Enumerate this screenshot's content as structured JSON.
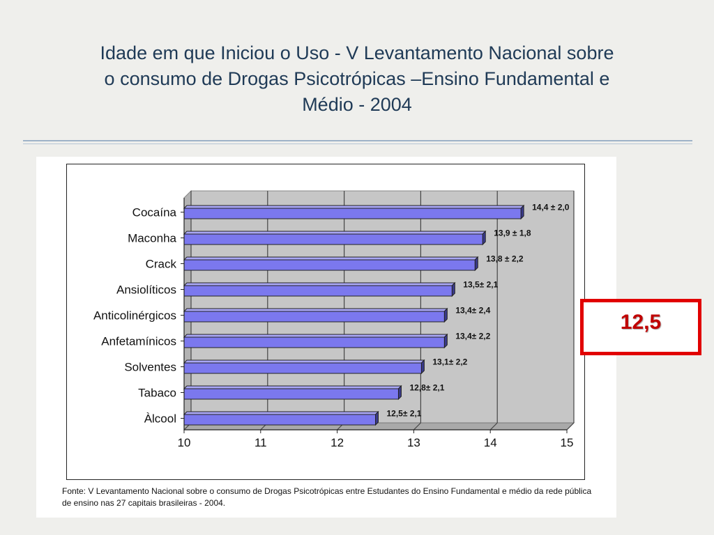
{
  "slide": {
    "title_lines": [
      "Idade em que Iniciou o Uso - V Levantamento Nacional sobre",
      "o consumo de Drogas Psicotrópicas –Ensino Fundamental e",
      "Médio - 2004"
    ]
  },
  "highlight": {
    "value": "12,5",
    "border_color": "#e10000",
    "text_color": "#c00000"
  },
  "chart_data": {
    "type": "bar",
    "orientation": "horizontal",
    "style": "3d",
    "categories": [
      "Cocaína",
      "Maconha",
      "Crack",
      "Ansiolíticos",
      "Anticolinérgicos",
      "Anfetamínicos",
      "Solventes",
      "Tabaco",
      "Àlcool"
    ],
    "category_labels": [
      "Cocaína",
      "Maconha",
      "Crack",
      "Ansiolíticos",
      "Anticolinérgicos",
      "Anfetamínicos",
      "Solventes",
      "Tabaco",
      "Àlcool"
    ],
    "values": [
      14.4,
      13.9,
      13.8,
      13.5,
      13.4,
      13.4,
      13.1,
      12.8,
      12.5
    ],
    "data_labels": [
      "14,4 ± 2,0",
      "13,9 ± 1,8",
      "13,8 ± 2,2",
      "13,5± 2,1",
      "13,4± 2,4",
      "13,4± 2,2",
      "13,1± 2,2",
      "12,8± 2,1",
      "12,5± 2,1"
    ],
    "xlim": [
      10,
      15
    ],
    "x_ticks": [
      "10",
      "11",
      "12",
      "13",
      "14",
      "15"
    ],
    "grid": true,
    "bar_color": "#7b78ee",
    "bar_side_color": "#3a3a8a",
    "wall_color": "#c6c6c6",
    "source": "Fonte: V Levantamento Nacional sobre o consumo de Drogas Psicotrópicas entre Estudantes do Ensino Fundamental e médio da rede pública de ensino nas 27 capitais brasileiras - 2004."
  }
}
